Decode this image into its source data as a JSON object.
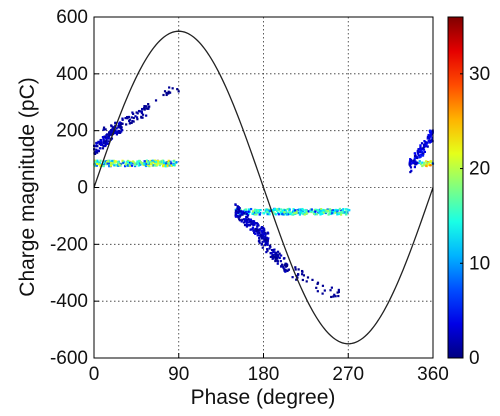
{
  "chart_data": {
    "type": "scatter",
    "title": "",
    "xlabel": "Phase (degree)",
    "ylabel": "Charge magnitude (pC)",
    "xlim": [
      0,
      360
    ],
    "ylim": [
      -600,
      600
    ],
    "xticks": [
      0,
      90,
      180,
      270,
      360
    ],
    "xtick_labels": [
      "0",
      "90",
      "180",
      "270",
      "360"
    ],
    "yticks": [
      600,
      400,
      200,
      0,
      -200,
      -400,
      -600
    ],
    "ytick_labels": [
      "600",
      "400",
      "200",
      "0",
      "-200",
      "-400",
      "-600"
    ],
    "grid": true,
    "reference_curve": {
      "type": "sine",
      "amplitude": 550,
      "period_deg": 360
    },
    "colorbar": {
      "range": [
        0,
        36
      ],
      "ticks": [
        0,
        10,
        20,
        30
      ],
      "tick_labels": [
        "0",
        "10",
        "20",
        "30"
      ],
      "colormap": "jet"
    },
    "clusters": [
      {
        "x": [
          0,
          30
        ],
        "y": [
          130,
          220
        ],
        "intensity": 2,
        "density": 110
      },
      {
        "x": [
          10,
          60
        ],
        "y": [
          190,
          280
        ],
        "intensity": 1,
        "density": 70
      },
      {
        "x": [
          55,
          90
        ],
        "y": [
          260,
          360
        ],
        "intensity": 0.5,
        "density": 14
      },
      {
        "x": [
          0,
          88
        ],
        "y": [
          75,
          95
        ],
        "intensity": 12,
        "density": 260,
        "band": true
      },
      {
        "x": [
          150,
          272
        ],
        "y": [
          -95,
          -75
        ],
        "intensity": 10,
        "density": 320,
        "band": true
      },
      {
        "x": [
          150,
          185
        ],
        "y": [
          -180,
          -80
        ],
        "intensity": 2,
        "density": 160
      },
      {
        "x": [
          175,
          205
        ],
        "y": [
          -280,
          -180
        ],
        "intensity": 1.5,
        "density": 90
      },
      {
        "x": [
          200,
          260
        ],
        "y": [
          -380,
          -280
        ],
        "intensity": 0.6,
        "density": 40
      },
      {
        "x": [
          335,
          360
        ],
        "y": [
          70,
          190
        ],
        "intensity": 3,
        "density": 110
      },
      {
        "x": [
          345,
          360
        ],
        "y": [
          75,
          95
        ],
        "intensity": 14,
        "density": 30,
        "band": true
      }
    ]
  }
}
